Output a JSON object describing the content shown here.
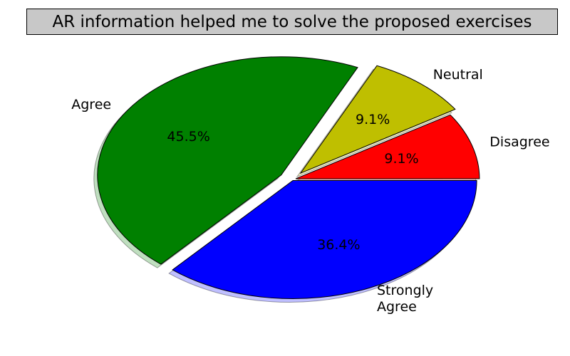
{
  "chart_data": {
    "type": "pie",
    "title": "AR information helped me to solve the proposed exercises",
    "slices": [
      {
        "label": "Disagree",
        "value": 9.1,
        "pct_label": "9.1%",
        "color": "#ff0000"
      },
      {
        "label": "Neutral",
        "value": 9.1,
        "pct_label": "9.1%",
        "color": "#bfbf00"
      },
      {
        "label": "Agree",
        "value": 45.5,
        "pct_label": "45.5%",
        "color": "#008000"
      },
      {
        "label": "Strongly Agree",
        "value": 36.4,
        "pct_label": "36.4%",
        "color": "#0000ff"
      }
    ],
    "shadow": true,
    "exploded": true,
    "legend": "none"
  }
}
